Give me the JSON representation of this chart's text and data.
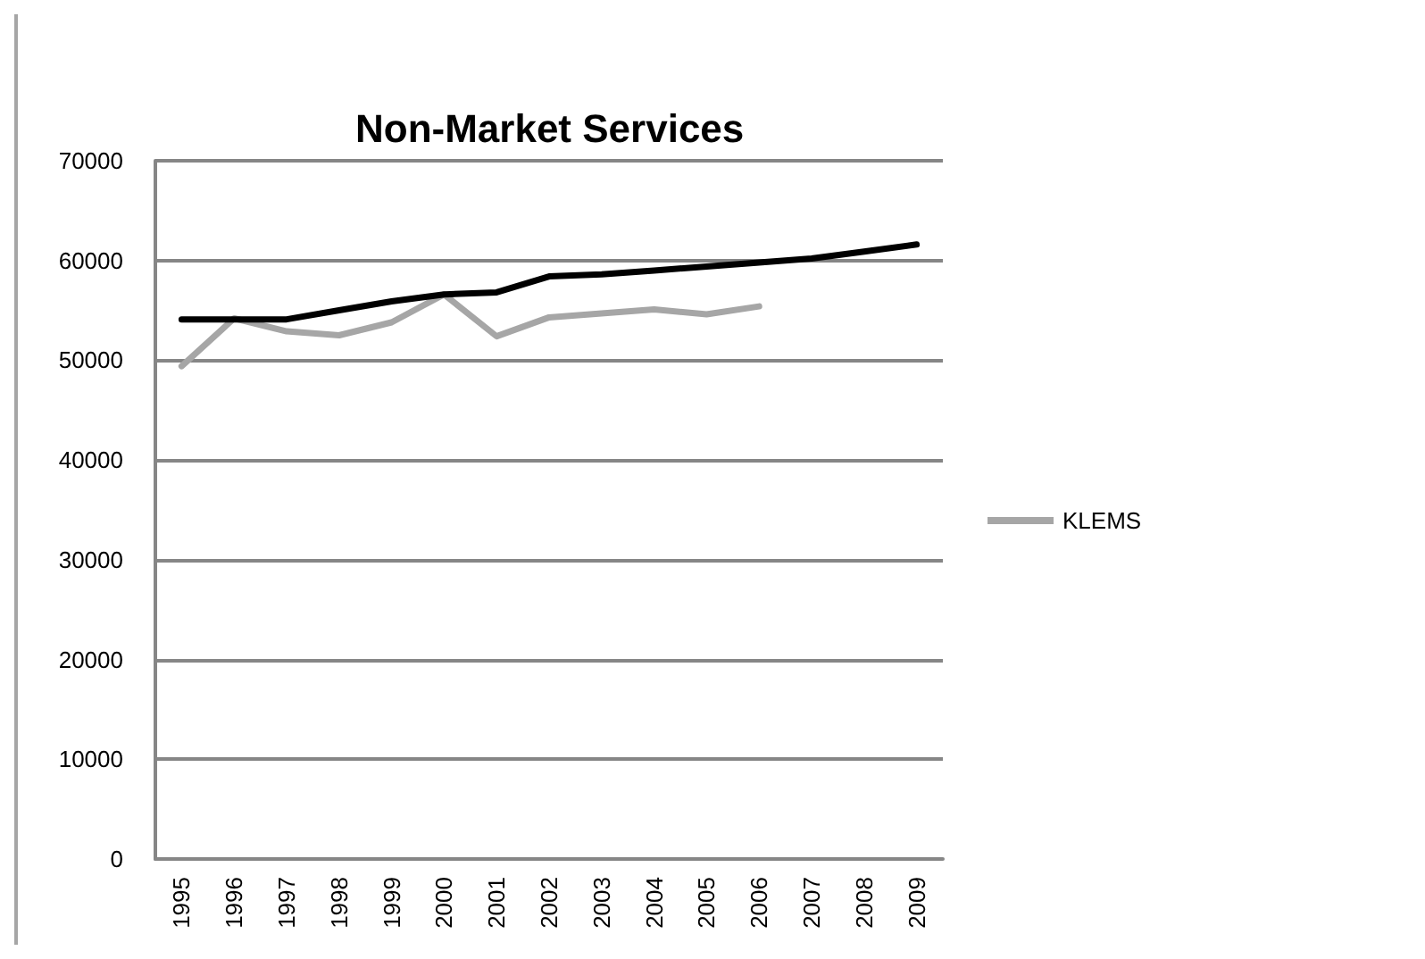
{
  "chart_data": {
    "type": "line",
    "title": "Non-Market Services",
    "categories": [
      "1995",
      "1996",
      "1997",
      "1998",
      "1999",
      "2000",
      "2001",
      "2002",
      "2003",
      "2004",
      "2005",
      "2006",
      "2007",
      "2008",
      "2009"
    ],
    "series": [
      {
        "name": "KLEMS",
        "color": "#a6a6a6",
        "values": [
          49400,
          54200,
          52900,
          52500,
          53800,
          56600,
          52400,
          54300,
          54700,
          55100,
          54600,
          55400,
          null,
          null,
          null
        ]
      },
      {
        "color": "#000000",
        "values": [
          54100,
          54100,
          54100,
          55000,
          55900,
          56600,
          56800,
          58400,
          58600,
          59000,
          59400,
          59800,
          60200,
          60900,
          61600
        ]
      }
    ],
    "ylim": [
      0,
      70000
    ],
    "yticks": [
      0,
      10000,
      20000,
      30000,
      40000,
      50000,
      60000,
      70000
    ],
    "grid": "y",
    "legend": "right"
  }
}
